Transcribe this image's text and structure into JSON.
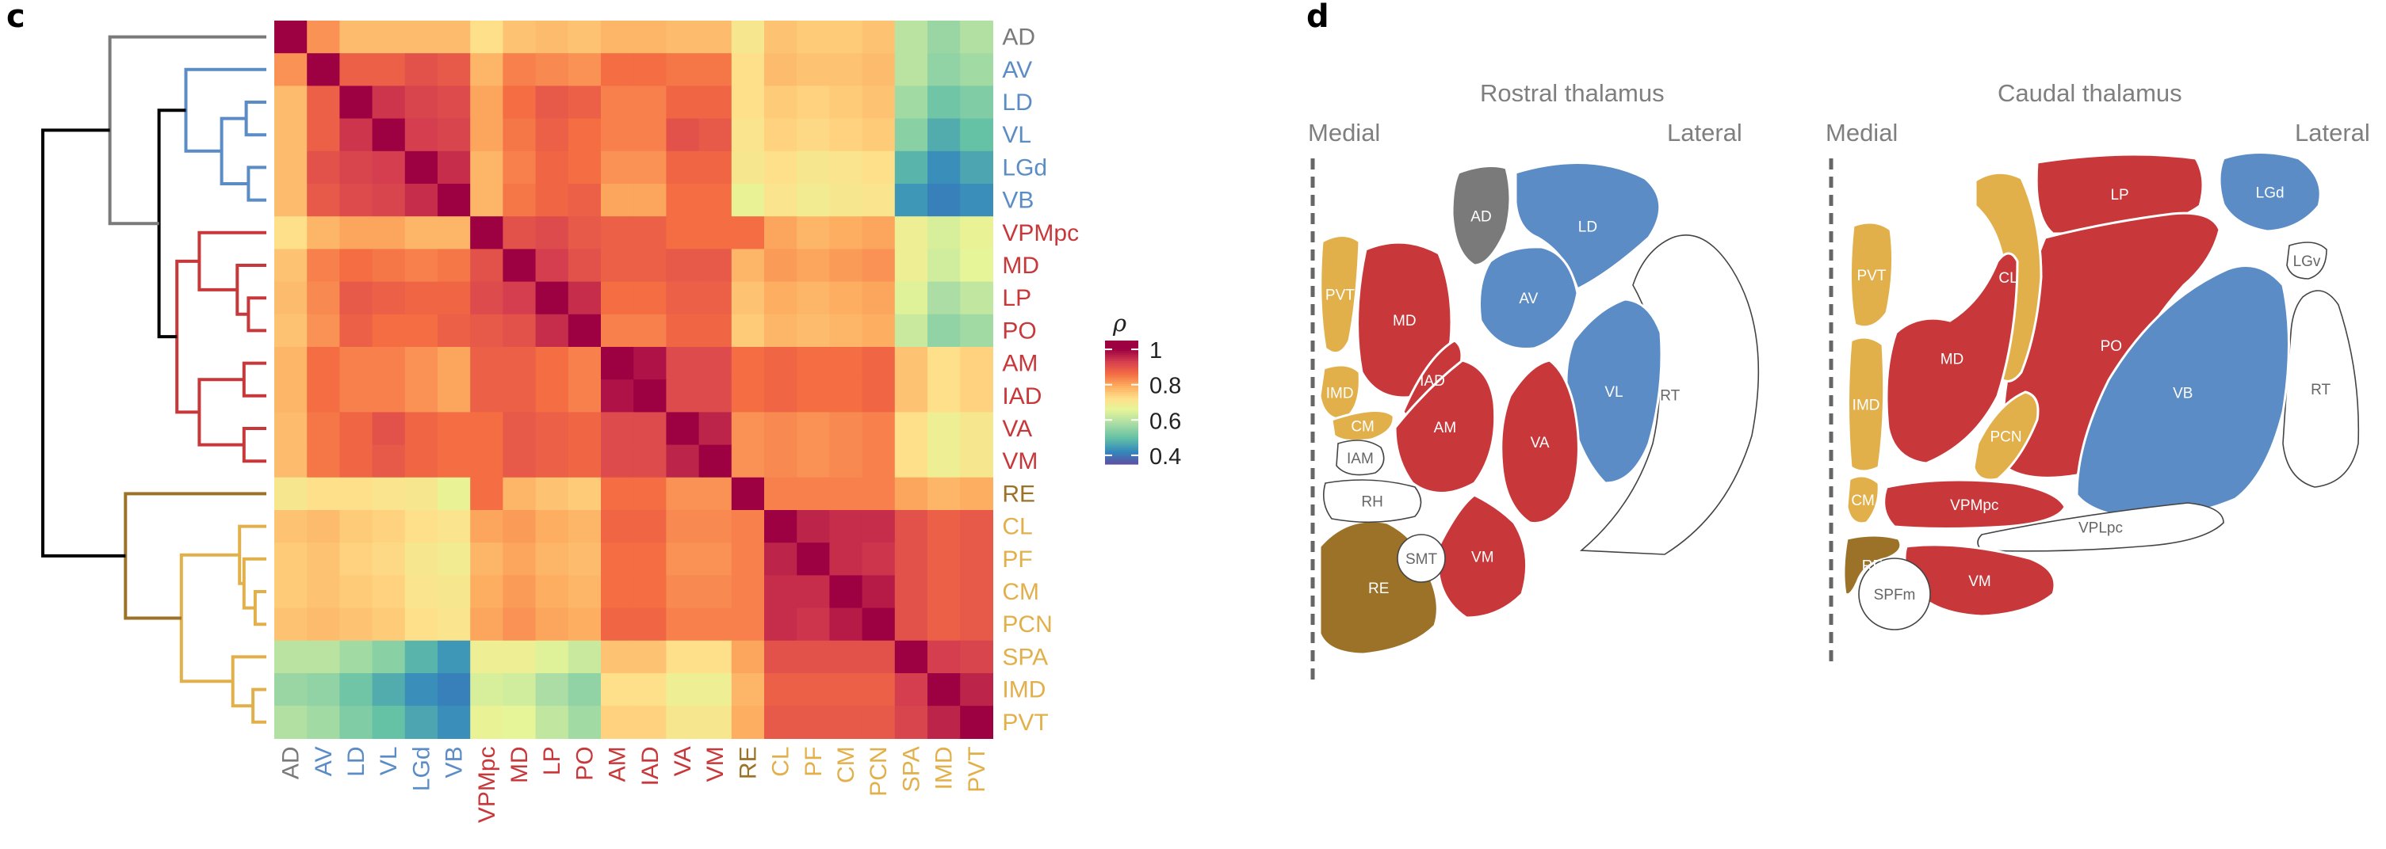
{
  "panels": {
    "left_letter": "c",
    "right_letter": "d"
  },
  "colors": {
    "AD": "#7a7a7a",
    "AV": "#5b8cc6",
    "LD": "#5b8cc6",
    "VL": "#5b8cc6",
    "LGd": "#5b8cc6",
    "VB": "#5b8cc6",
    "VPMpc": "#c8383a",
    "MD": "#c8383a",
    "LP": "#c8383a",
    "PO": "#c8383a",
    "AM": "#c8383a",
    "IAD": "#c8383a",
    "VA": "#c8383a",
    "VM": "#c8383a",
    "RE": "#9b7227",
    "CL": "#e2b04a",
    "PF": "#e2b04a",
    "CM": "#e2b04a",
    "PCN": "#e2b04a",
    "SPA": "#e2b04a",
    "IMD": "#e2b04a",
    "PVT": "#e2b04a"
  },
  "chart_data": {
    "type": "heatmap",
    "labels": [
      "AD",
      "AV",
      "LD",
      "VL",
      "LGd",
      "VB",
      "VPMpc",
      "MD",
      "LP",
      "PO",
      "AM",
      "IAD",
      "VA",
      "VM",
      "RE",
      "CL",
      "PF",
      "CM",
      "PCN",
      "SPA",
      "IMD",
      "PVT"
    ],
    "matrix": [
      [
        1.0,
        0.82,
        0.77,
        0.77,
        0.77,
        0.77,
        0.72,
        0.76,
        0.77,
        0.76,
        0.78,
        0.78,
        0.77,
        0.77,
        0.7,
        0.76,
        0.75,
        0.75,
        0.76,
        0.6,
        0.56,
        0.59
      ],
      [
        0.82,
        1.0,
        0.88,
        0.88,
        0.9,
        0.89,
        0.78,
        0.84,
        0.83,
        0.82,
        0.86,
        0.86,
        0.85,
        0.85,
        0.72,
        0.77,
        0.76,
        0.76,
        0.77,
        0.6,
        0.55,
        0.57
      ],
      [
        0.77,
        0.88,
        1.0,
        0.94,
        0.92,
        0.91,
        0.8,
        0.86,
        0.89,
        0.88,
        0.84,
        0.84,
        0.87,
        0.87,
        0.72,
        0.75,
        0.74,
        0.75,
        0.76,
        0.57,
        0.51,
        0.53
      ],
      [
        0.77,
        0.88,
        0.94,
        1.0,
        0.93,
        0.92,
        0.8,
        0.85,
        0.88,
        0.86,
        0.84,
        0.84,
        0.9,
        0.89,
        0.71,
        0.74,
        0.73,
        0.74,
        0.75,
        0.54,
        0.47,
        0.5
      ],
      [
        0.77,
        0.9,
        0.92,
        0.93,
        1.0,
        0.95,
        0.78,
        0.84,
        0.87,
        0.86,
        0.82,
        0.82,
        0.87,
        0.87,
        0.7,
        0.72,
        0.7,
        0.71,
        0.72,
        0.48,
        0.43,
        0.46
      ],
      [
        0.77,
        0.89,
        0.91,
        0.92,
        0.95,
        1.0,
        0.78,
        0.85,
        0.87,
        0.88,
        0.8,
        0.8,
        0.86,
        0.86,
        0.67,
        0.71,
        0.69,
        0.7,
        0.71,
        0.44,
        0.41,
        0.43
      ],
      [
        0.72,
        0.78,
        0.8,
        0.8,
        0.78,
        0.78,
        1.0,
        0.9,
        0.91,
        0.89,
        0.88,
        0.88,
        0.86,
        0.86,
        0.86,
        0.8,
        0.78,
        0.79,
        0.8,
        0.68,
        0.64,
        0.67
      ],
      [
        0.76,
        0.84,
        0.86,
        0.85,
        0.84,
        0.85,
        0.9,
        1.0,
        0.93,
        0.9,
        0.88,
        0.88,
        0.89,
        0.89,
        0.78,
        0.81,
        0.8,
        0.81,
        0.82,
        0.68,
        0.63,
        0.66
      ],
      [
        0.77,
        0.83,
        0.89,
        0.88,
        0.87,
        0.87,
        0.91,
        0.93,
        1.0,
        0.95,
        0.86,
        0.86,
        0.88,
        0.88,
        0.76,
        0.79,
        0.78,
        0.79,
        0.8,
        0.65,
        0.58,
        0.61
      ],
      [
        0.76,
        0.82,
        0.88,
        0.86,
        0.86,
        0.88,
        0.89,
        0.9,
        0.95,
        1.0,
        0.84,
        0.84,
        0.87,
        0.87,
        0.75,
        0.78,
        0.77,
        0.78,
        0.79,
        0.62,
        0.55,
        0.57
      ],
      [
        0.78,
        0.86,
        0.84,
        0.84,
        0.82,
        0.8,
        0.88,
        0.88,
        0.86,
        0.84,
        1.0,
        0.98,
        0.91,
        0.91,
        0.86,
        0.87,
        0.86,
        0.86,
        0.87,
        0.76,
        0.72,
        0.74
      ],
      [
        0.78,
        0.86,
        0.84,
        0.84,
        0.82,
        0.8,
        0.88,
        0.88,
        0.86,
        0.84,
        0.98,
        1.0,
        0.91,
        0.91,
        0.86,
        0.87,
        0.86,
        0.86,
        0.87,
        0.76,
        0.72,
        0.74
      ],
      [
        0.77,
        0.85,
        0.87,
        0.9,
        0.87,
        0.86,
        0.86,
        0.89,
        0.88,
        0.87,
        0.91,
        0.91,
        1.0,
        0.96,
        0.82,
        0.83,
        0.82,
        0.83,
        0.84,
        0.72,
        0.68,
        0.7
      ],
      [
        0.77,
        0.85,
        0.87,
        0.89,
        0.87,
        0.86,
        0.86,
        0.89,
        0.88,
        0.87,
        0.91,
        0.91,
        0.96,
        1.0,
        0.82,
        0.83,
        0.82,
        0.83,
        0.84,
        0.72,
        0.68,
        0.7
      ],
      [
        0.7,
        0.72,
        0.72,
        0.71,
        0.7,
        0.67,
        0.86,
        0.78,
        0.76,
        0.75,
        0.86,
        0.86,
        0.82,
        0.82,
        1.0,
        0.84,
        0.84,
        0.84,
        0.84,
        0.8,
        0.78,
        0.79
      ],
      [
        0.76,
        0.77,
        0.75,
        0.74,
        0.72,
        0.71,
        0.8,
        0.81,
        0.79,
        0.78,
        0.87,
        0.87,
        0.83,
        0.83,
        0.84,
        1.0,
        0.96,
        0.95,
        0.95,
        0.9,
        0.88,
        0.89
      ],
      [
        0.75,
        0.76,
        0.74,
        0.73,
        0.7,
        0.69,
        0.78,
        0.8,
        0.78,
        0.77,
        0.86,
        0.86,
        0.82,
        0.82,
        0.84,
        0.96,
        1.0,
        0.95,
        0.94,
        0.9,
        0.88,
        0.89
      ],
      [
        0.75,
        0.76,
        0.75,
        0.74,
        0.71,
        0.7,
        0.79,
        0.81,
        0.79,
        0.78,
        0.86,
        0.86,
        0.83,
        0.83,
        0.84,
        0.95,
        0.95,
        1.0,
        0.97,
        0.9,
        0.88,
        0.89
      ],
      [
        0.76,
        0.77,
        0.76,
        0.75,
        0.72,
        0.71,
        0.8,
        0.82,
        0.8,
        0.79,
        0.87,
        0.87,
        0.84,
        0.84,
        0.84,
        0.95,
        0.94,
        0.97,
        1.0,
        0.9,
        0.88,
        0.89
      ],
      [
        0.6,
        0.6,
        0.57,
        0.54,
        0.48,
        0.44,
        0.68,
        0.68,
        0.65,
        0.62,
        0.76,
        0.76,
        0.72,
        0.72,
        0.8,
        0.9,
        0.9,
        0.9,
        0.9,
        1.0,
        0.93,
        0.92
      ],
      [
        0.56,
        0.55,
        0.51,
        0.47,
        0.43,
        0.41,
        0.64,
        0.63,
        0.58,
        0.55,
        0.72,
        0.72,
        0.68,
        0.68,
        0.78,
        0.88,
        0.88,
        0.88,
        0.88,
        0.93,
        1.0,
        0.96
      ],
      [
        0.59,
        0.57,
        0.53,
        0.5,
        0.46,
        0.43,
        0.67,
        0.66,
        0.61,
        0.57,
        0.74,
        0.74,
        0.7,
        0.7,
        0.79,
        0.89,
        0.89,
        0.89,
        0.89,
        0.92,
        0.96,
        1.0
      ]
    ],
    "colorbar": {
      "title": "ρ",
      "ticks": [
        "1",
        "0.8",
        "0.6",
        "0.4"
      ],
      "tick_values": [
        1.0,
        0.8,
        0.6,
        0.4
      ],
      "range": [
        0.35,
        1.05
      ]
    },
    "dendrogram": {
      "leaf_order": [
        "AD",
        "AV",
        "LD",
        "VL",
        "LGd",
        "VB",
        "VPMpc",
        "MD",
        "LP",
        "PO",
        "AM",
        "IAD",
        "VA",
        "VM",
        "RE",
        "CL",
        "PF",
        "CM",
        "PCN",
        "SPA",
        "IMD",
        "PVT"
      ],
      "merges": [
        {
          "a": "LGd",
          "b": "VB",
          "height": 0.08,
          "color": "#5b8cc6"
        },
        {
          "a": "LD",
          "b": "VL",
          "height": 0.09,
          "color": "#5b8cc6"
        },
        {
          "a": "LD+VL",
          "b": "LGd+VB",
          "height": 0.2,
          "color": "#5b8cc6"
        },
        {
          "a": "AV",
          "b": "LD+VL+LGd+VB",
          "height": 0.36,
          "color": "#5b8cc6"
        },
        {
          "a": "LP",
          "b": "PO",
          "height": 0.08,
          "color": "#c8383a"
        },
        {
          "a": "MD",
          "b": "LP+PO",
          "height": 0.13,
          "color": "#c8383a"
        },
        {
          "a": "VPMpc",
          "b": "MD+LP+PO",
          "height": 0.3,
          "color": "#c8383a"
        },
        {
          "a": "AM",
          "b": "IAD",
          "height": 0.1,
          "color": "#c8383a"
        },
        {
          "a": "VA",
          "b": "VM",
          "height": 0.1,
          "color": "#c8383a"
        },
        {
          "a": "AM+IAD",
          "b": "VA+VM",
          "height": 0.3,
          "color": "#c8383a"
        },
        {
          "a": "VPMpc+MD+LP+PO",
          "b": "AM+IAD+VA+VM",
          "height": 0.4,
          "color": "#c8383a"
        },
        {
          "a": "AV-group",
          "b": "VPMpc-group",
          "height": 0.48,
          "color": "#000000"
        },
        {
          "a": "AD",
          "b": "AV-VPMpc-group",
          "height": 0.7,
          "color": "#7a7a7a"
        },
        {
          "a": "CM",
          "b": "PCN",
          "height": 0.05,
          "color": "#e2b04a"
        },
        {
          "a": "PF",
          "b": "CM+PCN",
          "height": 0.1,
          "color": "#e2b04a"
        },
        {
          "a": "CL",
          "b": "PF+CM+PCN",
          "height": 0.12,
          "color": "#e2b04a"
        },
        {
          "a": "IMD",
          "b": "PVT",
          "height": 0.06,
          "color": "#e2b04a"
        },
        {
          "a": "SPA",
          "b": "IMD+PVT",
          "height": 0.15,
          "color": "#e2b04a"
        },
        {
          "a": "CL-group",
          "b": "SPA-group",
          "height": 0.38,
          "color": "#e2b04a"
        },
        {
          "a": "RE",
          "b": "CL-SPA-group",
          "height": 0.63,
          "color": "#9b7227"
        },
        {
          "a": "AD-group",
          "b": "RE-group",
          "height": 1.0,
          "color": "#000000"
        }
      ]
    }
  },
  "atlas": {
    "rostral": {
      "title": "Rostral thalamus",
      "medial_label": "Medial",
      "lateral_label": "Lateral",
      "regions": [
        {
          "key": "PVT",
          "label": "PVT",
          "filled": true
        },
        {
          "key": "MD",
          "label": "MD",
          "filled": true
        },
        {
          "key": "AD",
          "label": "AD",
          "filled": true
        },
        {
          "key": "LD",
          "label": "LD",
          "filled": true
        },
        {
          "key": "AV",
          "label": "AV",
          "filled": true
        },
        {
          "key": "VL",
          "label": "VL",
          "filled": true
        },
        {
          "key": "IAD",
          "label": "IAD",
          "filled": true
        },
        {
          "key": "IMD",
          "label": "IMD",
          "filled": true
        },
        {
          "key": "CM",
          "label": "CM",
          "filled": true
        },
        {
          "key": "AM",
          "label": "AM",
          "filled": true
        },
        {
          "key": "VA",
          "label": "VA",
          "filled": true
        },
        {
          "key": "VM",
          "label": "VM",
          "filled": true
        },
        {
          "key": "RE",
          "label": "RE",
          "filled": true
        },
        {
          "key": "IAM",
          "label": "IAM",
          "filled": false
        },
        {
          "key": "RH",
          "label": "RH",
          "filled": false
        },
        {
          "key": "SMT",
          "label": "SMT",
          "filled": false
        },
        {
          "key": "RT",
          "label": "RT",
          "filled": false
        }
      ]
    },
    "caudal": {
      "title": "Caudal thalamus",
      "medial_label": "Medial",
      "lateral_label": "Lateral",
      "regions": [
        {
          "key": "PVT",
          "label": "PVT",
          "filled": true
        },
        {
          "key": "MD",
          "label": "MD",
          "filled": true
        },
        {
          "key": "CL",
          "label": "CL",
          "filled": true
        },
        {
          "key": "LP",
          "label": "LP",
          "filled": true
        },
        {
          "key": "LGd",
          "label": "LGd",
          "filled": true
        },
        {
          "key": "PO",
          "label": "PO",
          "filled": true
        },
        {
          "key": "VB",
          "label": "VB",
          "filled": true
        },
        {
          "key": "IMD",
          "label": "IMD",
          "filled": true
        },
        {
          "key": "PCN",
          "label": "PCN",
          "filled": true
        },
        {
          "key": "CM",
          "label": "CM",
          "filled": true
        },
        {
          "key": "VPMpc",
          "label": "VPMpc",
          "filled": true
        },
        {
          "key": "RE",
          "label": "RE",
          "filled": true
        },
        {
          "key": "VM",
          "label": "VM",
          "filled": true
        },
        {
          "key": "LGv",
          "label": "LGv",
          "filled": false
        },
        {
          "key": "RT",
          "label": "RT",
          "filled": false
        },
        {
          "key": "VPLpc",
          "label": "VPLpc",
          "filled": false
        },
        {
          "key": "SPFm",
          "label": "SPFm",
          "filled": false
        }
      ]
    }
  }
}
